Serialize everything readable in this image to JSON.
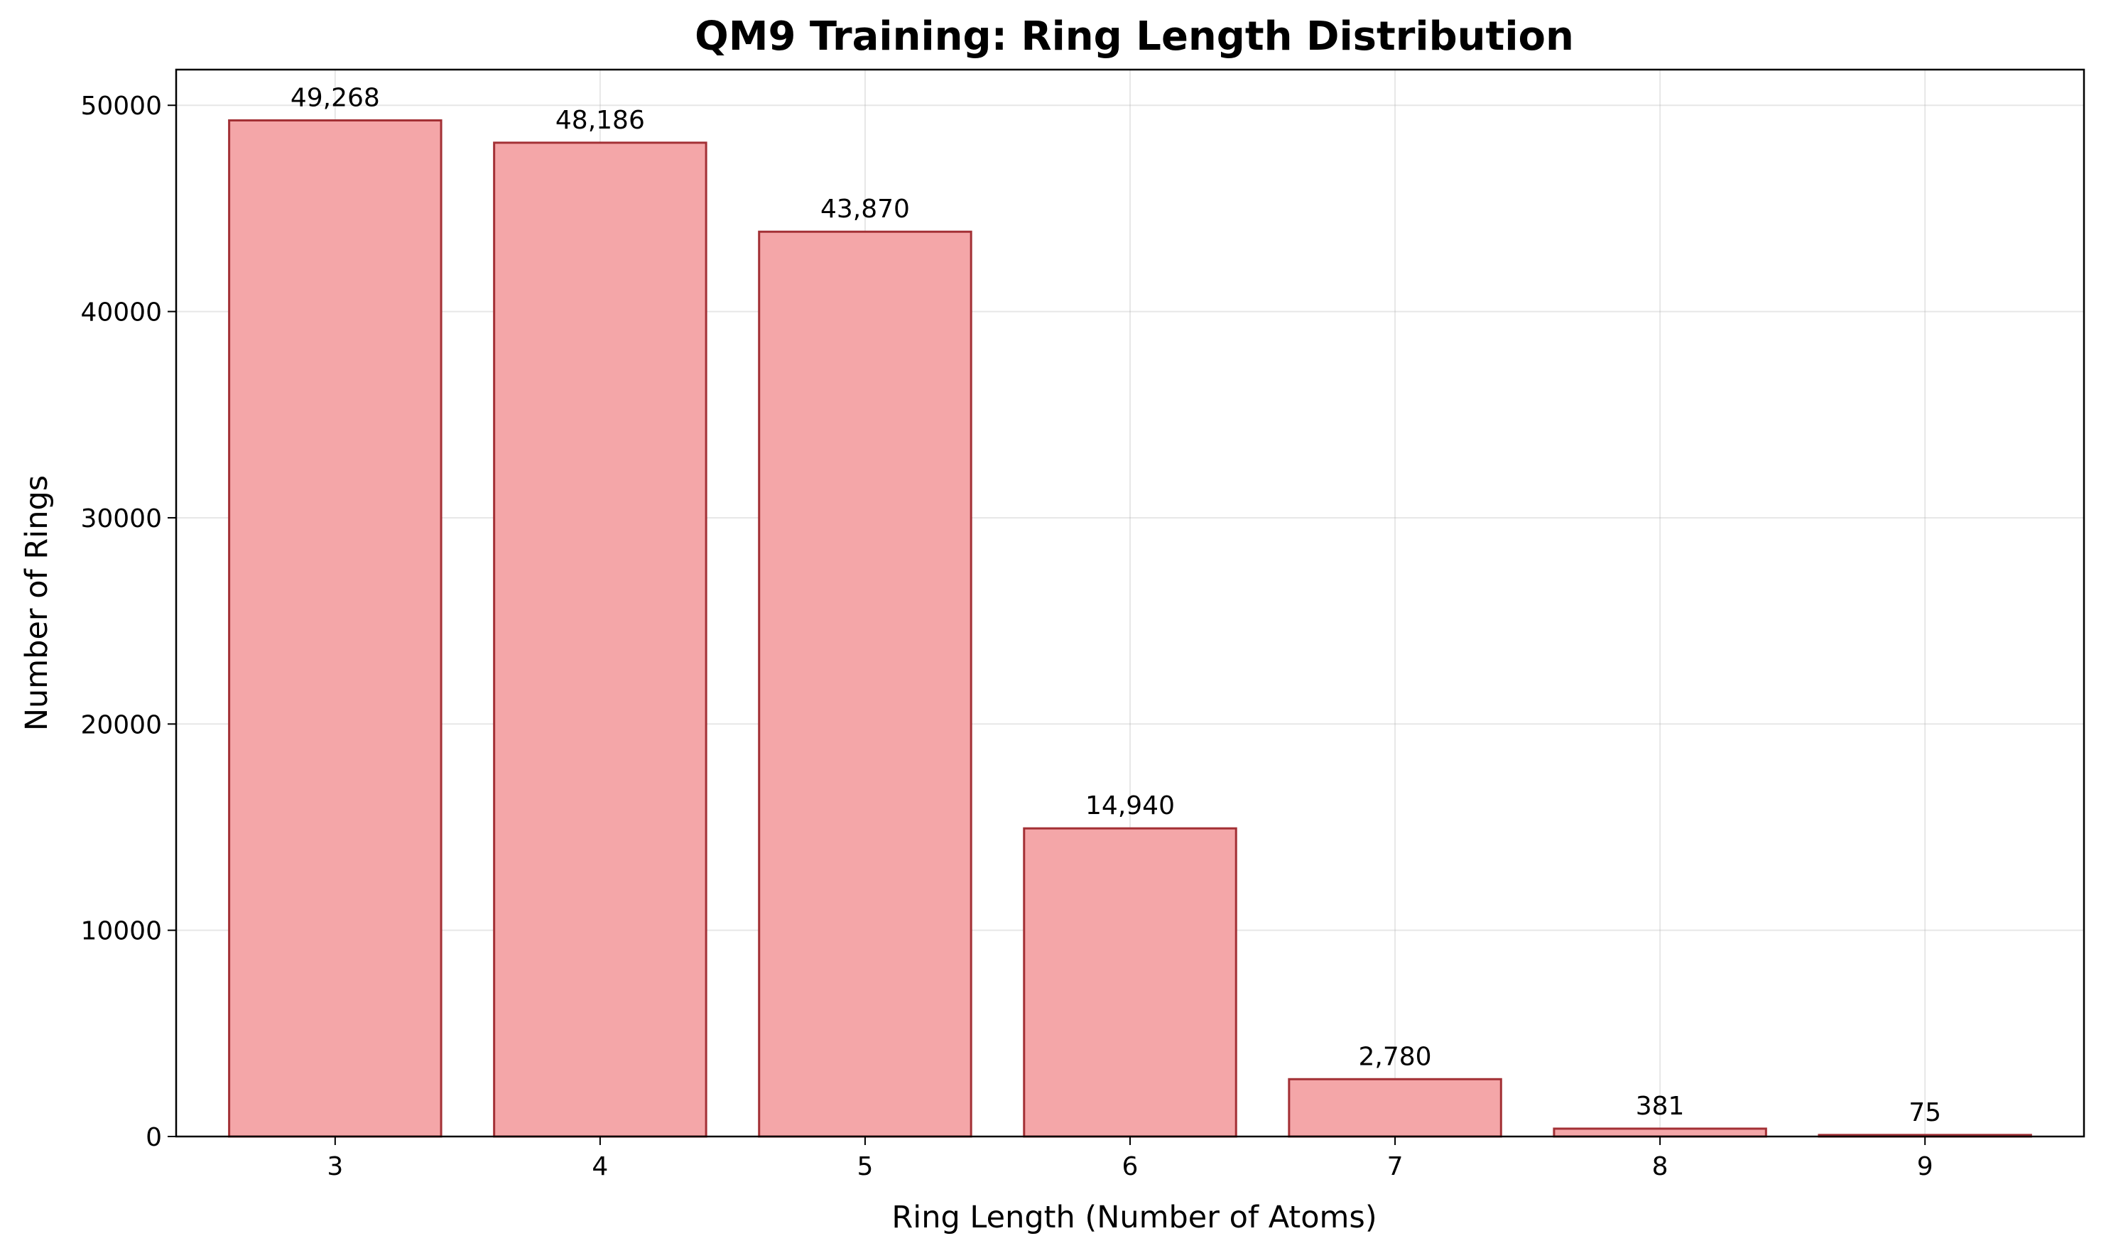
{
  "chart_data": {
    "type": "bar",
    "title": "QM9 Training: Ring Length Distribution",
    "xlabel": "Ring Length (Number of Atoms)",
    "ylabel": "Number of Rings",
    "categories": [
      "3",
      "4",
      "5",
      "6",
      "7",
      "8",
      "9"
    ],
    "values": [
      49268,
      48186,
      43870,
      14940,
      2780,
      381,
      75
    ],
    "value_labels": [
      "49,268",
      "48,186",
      "43,870",
      "14,940",
      "2,780",
      "381",
      "75"
    ],
    "ylim": [
      0,
      51730
    ],
    "yticks": [
      0,
      10000,
      20000,
      30000,
      40000,
      50000
    ],
    "ytick_labels": [
      "0",
      "10000",
      "20000",
      "30000",
      "40000",
      "50000"
    ],
    "grid": true,
    "colors": {
      "bar_fill": "#f4a6a8",
      "bar_edge": "#a33035"
    }
  }
}
